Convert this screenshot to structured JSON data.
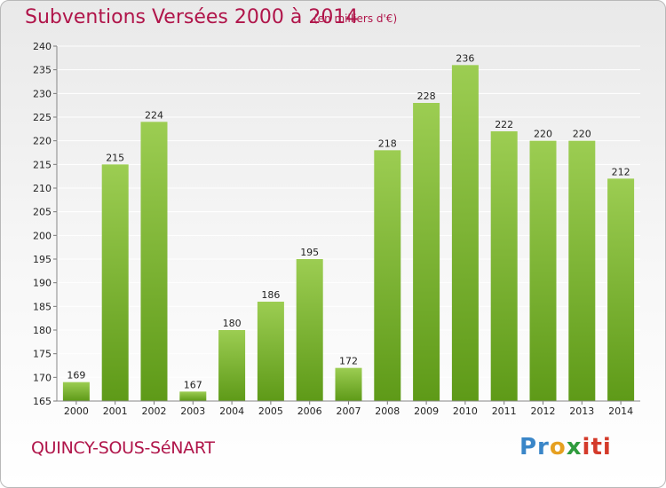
{
  "header": {
    "title": "Subventions Versées 2000 à 2014",
    "unit_note": "(en milliers d'€)"
  },
  "footer": {
    "city": "QUINCY-SOUS-SéNART",
    "logo": "Proxiti"
  },
  "colors": {
    "title": "#b0154a",
    "bar_top": "#9ccd52",
    "bar_bottom": "#5e9a18",
    "grid": "#ffffff"
  },
  "chart_data": {
    "type": "bar",
    "title": "Subventions Versées 2000 à 2014",
    "subtitle": "(en milliers d'€)",
    "xlabel": "",
    "ylabel": "",
    "categories": [
      "2000",
      "2001",
      "2002",
      "2003",
      "2004",
      "2005",
      "2006",
      "2007",
      "2008",
      "2009",
      "2010",
      "2011",
      "2012",
      "2013",
      "2014"
    ],
    "values": [
      169,
      215,
      224,
      167,
      180,
      186,
      195,
      172,
      218,
      228,
      236,
      222,
      220,
      220,
      212
    ],
    "ylim": [
      165,
      240
    ],
    "yticks": [
      165,
      170,
      175,
      180,
      185,
      190,
      195,
      200,
      205,
      210,
      215,
      220,
      225,
      230,
      235,
      240
    ],
    "grid": true,
    "legend": "none"
  }
}
